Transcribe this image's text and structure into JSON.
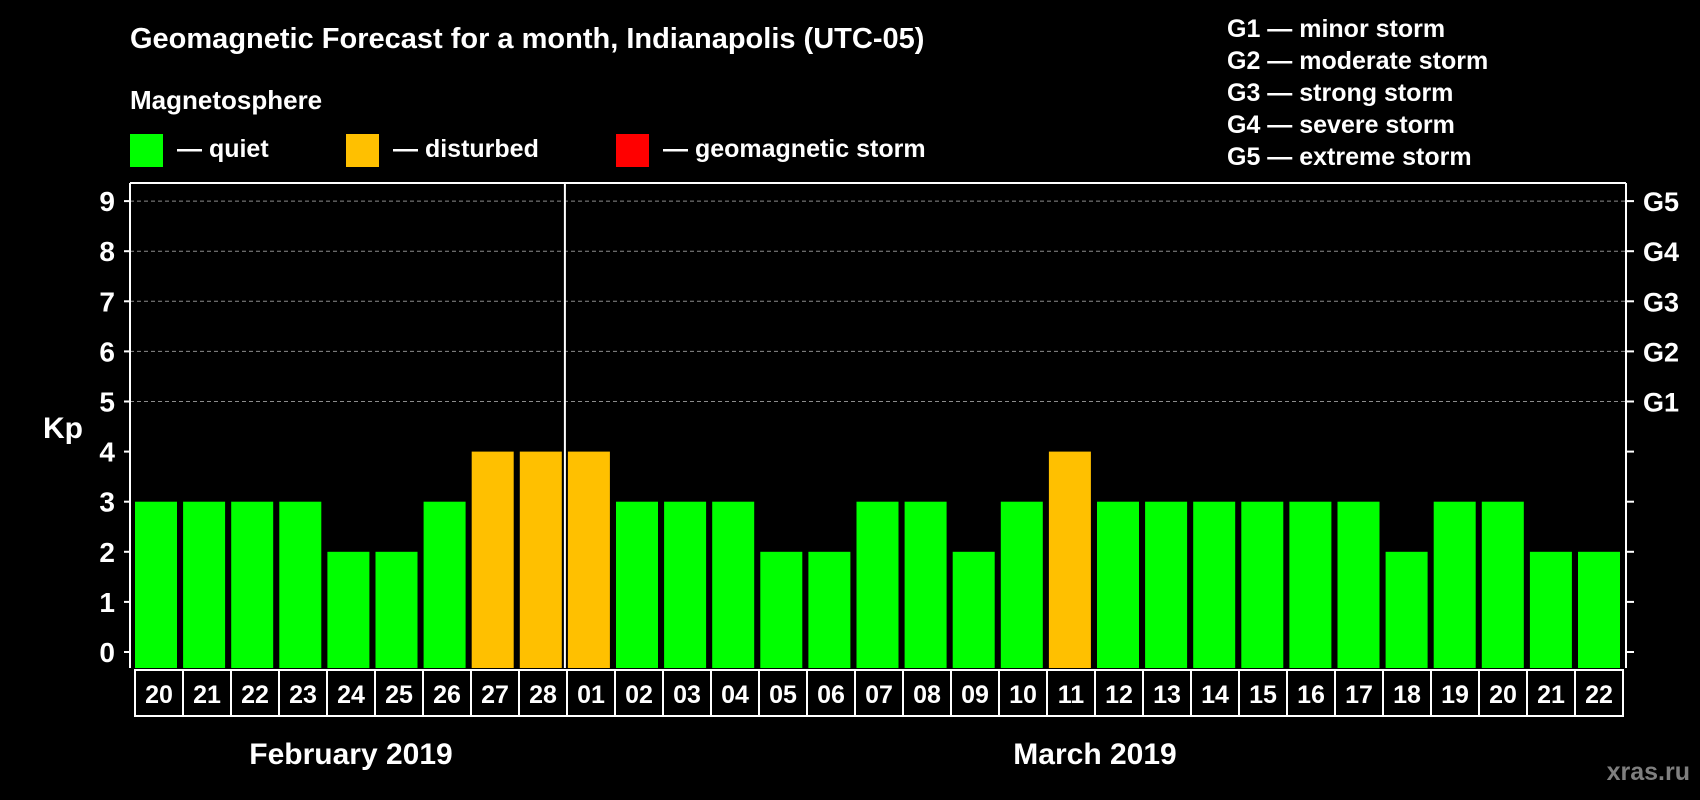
{
  "title": "Geomagnetic Forecast for a month, Indianapolis (UTC-05)",
  "legend": {
    "heading": "Magnetosphere",
    "items": [
      {
        "label": "— quiet",
        "color": "#00ff00"
      },
      {
        "label": "— disturbed",
        "color": "#ffc000"
      },
      {
        "label": "— geomagnetic storm",
        "color": "#ff0000"
      }
    ]
  },
  "g_levels": [
    "G1 — minor storm",
    "G2 — moderate storm",
    "G3 — strong storm",
    "G4 — severe storm",
    "G5 — extreme storm"
  ],
  "watermark": "xras.ru",
  "chart_data": {
    "type": "bar",
    "ylabel": "Kp",
    "ylim": [
      0,
      9
    ],
    "yticks": [
      "0",
      "1",
      "2",
      "3",
      "4",
      "5",
      "6",
      "7",
      "8",
      "9"
    ],
    "storm_ticks": [
      {
        "kp": 5,
        "label": "G1"
      },
      {
        "kp": 6,
        "label": "G2"
      },
      {
        "kp": 7,
        "label": "G3"
      },
      {
        "kp": 8,
        "label": "G4"
      },
      {
        "kp": 9,
        "label": "G5"
      }
    ],
    "gridlines": [
      5,
      6,
      7,
      8,
      9
    ],
    "categories": [
      "20",
      "21",
      "22",
      "23",
      "24",
      "25",
      "26",
      "27",
      "28",
      "01",
      "02",
      "03",
      "04",
      "05",
      "06",
      "07",
      "08",
      "09",
      "10",
      "11",
      "12",
      "13",
      "14",
      "15",
      "16",
      "17",
      "18",
      "19",
      "20",
      "21",
      "22"
    ],
    "values": [
      3,
      3,
      3,
      3,
      2,
      2,
      3,
      4,
      4,
      4,
      3,
      3,
      3,
      2,
      2,
      3,
      3,
      2,
      3,
      4,
      3,
      3,
      3,
      3,
      3,
      3,
      2,
      3,
      3,
      2,
      2
    ],
    "status": [
      "quiet",
      "quiet",
      "quiet",
      "quiet",
      "quiet",
      "quiet",
      "quiet",
      "disturbed",
      "disturbed",
      "disturbed",
      "quiet",
      "quiet",
      "quiet",
      "quiet",
      "quiet",
      "quiet",
      "quiet",
      "quiet",
      "quiet",
      "disturbed",
      "quiet",
      "quiet",
      "quiet",
      "quiet",
      "quiet",
      "quiet",
      "quiet",
      "quiet",
      "quiet",
      "quiet",
      "quiet"
    ],
    "colors": {
      "quiet": "#00ff00",
      "disturbed": "#ffc000",
      "storm": "#ff0000"
    },
    "months": [
      {
        "label": "February 2019",
        "start": 0,
        "count": 9
      },
      {
        "label": "March 2019",
        "start": 9,
        "count": 22
      }
    ]
  }
}
